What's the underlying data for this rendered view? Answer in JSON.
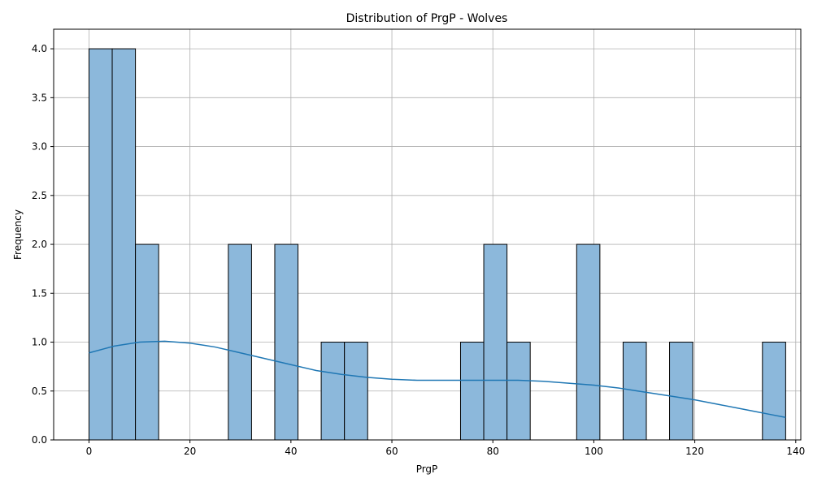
{
  "chart_data": {
    "type": "bar",
    "title": "Distribution of PrgP - Wolves",
    "xlabel": "PrgP",
    "ylabel": "Frequency",
    "xlim": [
      -7,
      141
    ],
    "ylim": [
      0,
      4.2
    ],
    "xticks": [
      0,
      20,
      40,
      60,
      80,
      100,
      120,
      140
    ],
    "yticks": [
      0.0,
      0.5,
      1.0,
      1.5,
      2.0,
      2.5,
      3.0,
      3.5,
      4.0
    ],
    "grid": true,
    "bar_color": "#8cb8db",
    "bar_edge_color": "#000000",
    "kde_color": "#1f77b4",
    "bins": [
      {
        "x0": 0.0,
        "x1": 4.6,
        "count": 4
      },
      {
        "x0": 4.6,
        "x1": 9.2,
        "count": 4
      },
      {
        "x0": 9.2,
        "x1": 13.8,
        "count": 2
      },
      {
        "x0": 27.6,
        "x1": 32.2,
        "count": 2
      },
      {
        "x0": 36.8,
        "x1": 41.4,
        "count": 2
      },
      {
        "x0": 46.0,
        "x1": 50.6,
        "count": 1
      },
      {
        "x0": 50.6,
        "x1": 55.2,
        "count": 1
      },
      {
        "x0": 73.6,
        "x1": 78.2,
        "count": 1
      },
      {
        "x0": 78.2,
        "x1": 82.8,
        "count": 2
      },
      {
        "x0": 82.8,
        "x1": 87.4,
        "count": 1
      },
      {
        "x0": 96.6,
        "x1": 101.2,
        "count": 2
      },
      {
        "x0": 105.8,
        "x1": 110.4,
        "count": 1
      },
      {
        "x0": 115.0,
        "x1": 119.6,
        "count": 1
      },
      {
        "x0": 133.4,
        "x1": 138.0,
        "count": 1
      }
    ],
    "kde": {
      "x": [
        0,
        5,
        10,
        15,
        20,
        25,
        30,
        35,
        40,
        45,
        50,
        55,
        60,
        65,
        70,
        75,
        80,
        85,
        90,
        95,
        100,
        105,
        110,
        115,
        120,
        125,
        130,
        135,
        138
      ],
      "y": [
        0.89,
        0.96,
        1.0,
        1.01,
        0.99,
        0.95,
        0.89,
        0.83,
        0.77,
        0.71,
        0.67,
        0.64,
        0.62,
        0.61,
        0.61,
        0.61,
        0.61,
        0.61,
        0.6,
        0.58,
        0.56,
        0.53,
        0.49,
        0.45,
        0.41,
        0.36,
        0.31,
        0.26,
        0.23
      ]
    }
  }
}
